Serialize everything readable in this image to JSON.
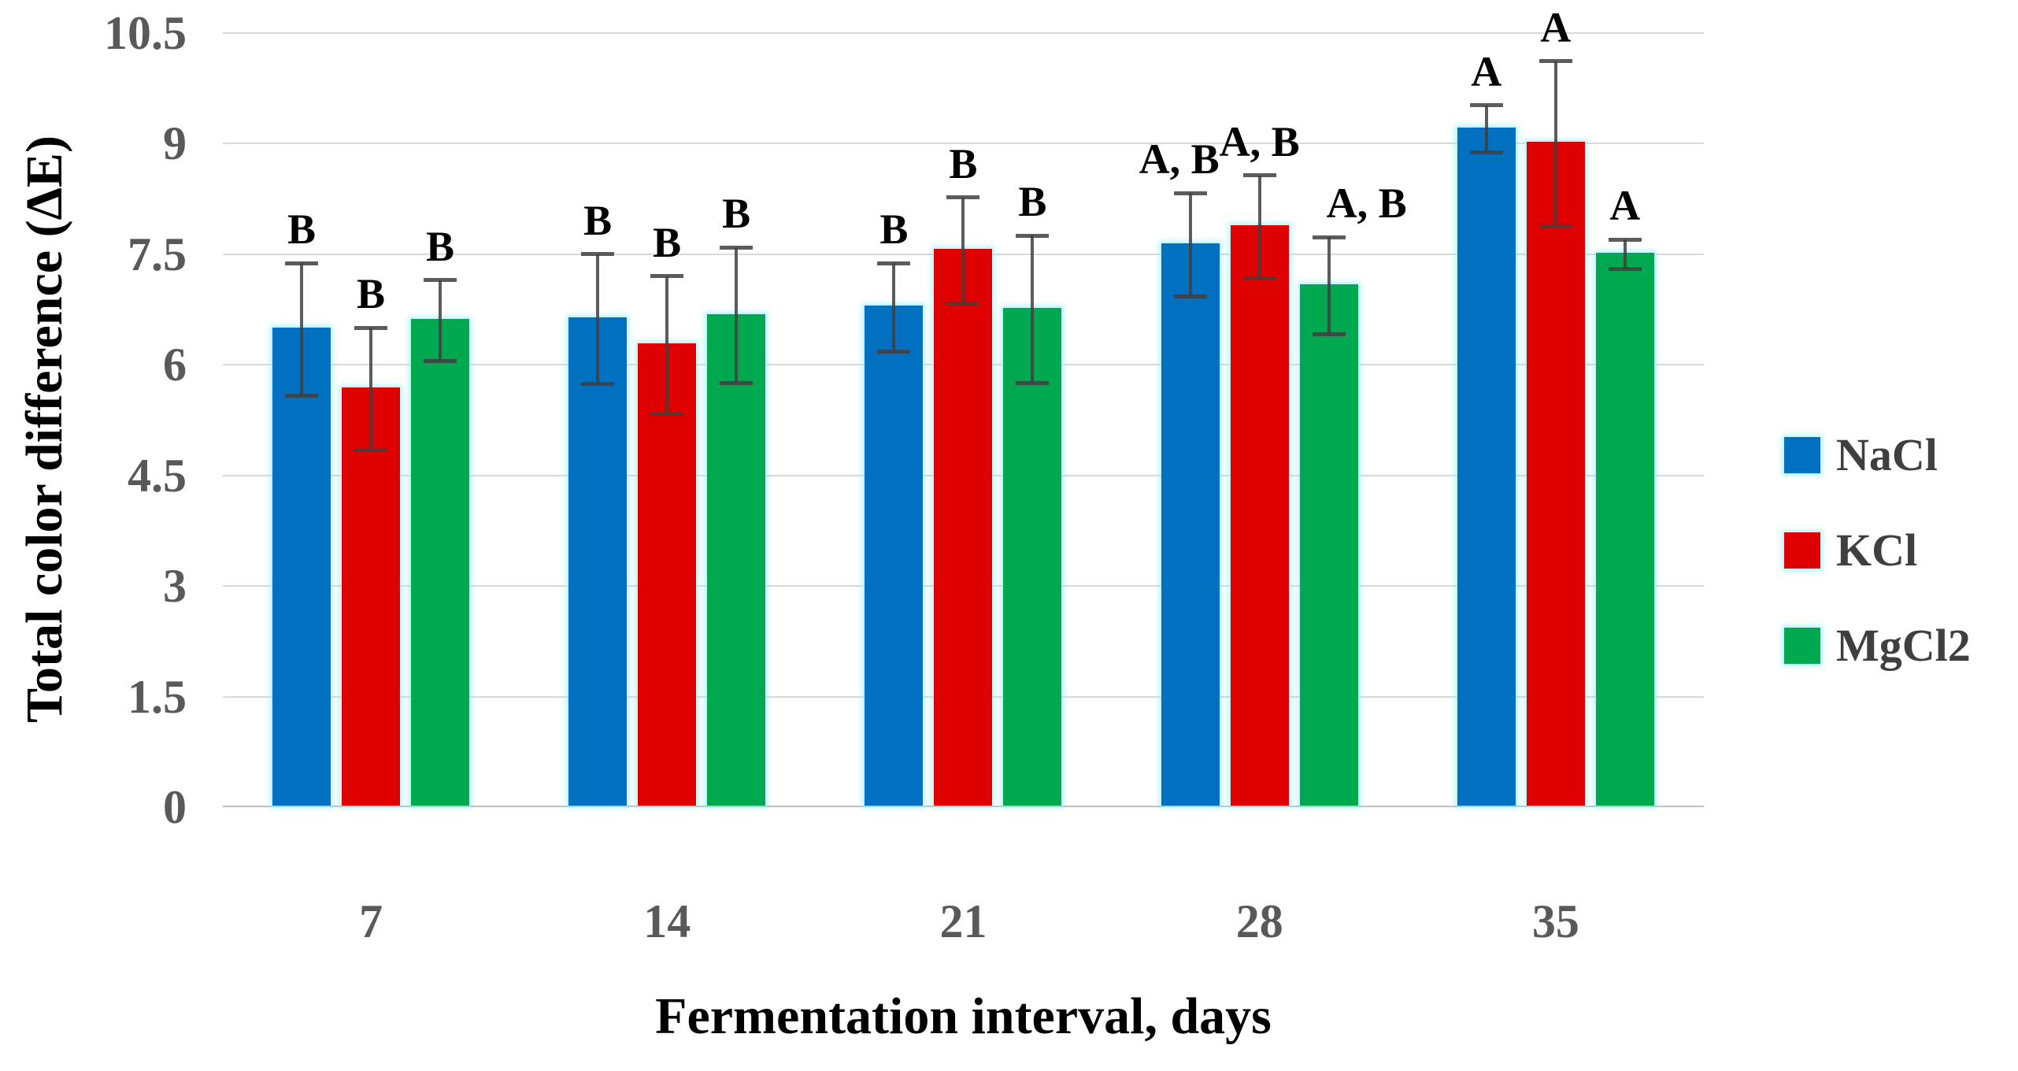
{
  "chart_data": {
    "type": "bar",
    "title": "",
    "xlabel": "Fermentation interval, days",
    "ylabel": "Total color difference (ΔE)",
    "categories": [
      "7",
      "14",
      "21",
      "28",
      "35"
    ],
    "series": [
      {
        "name": "NaCl",
        "color": "#0070C0",
        "values": [
          6.48,
          6.62,
          6.78,
          7.63,
          9.2
        ],
        "errors": [
          0.9,
          0.88,
          0.6,
          0.7,
          0.32
        ],
        "sig_letters": [
          "B",
          "B",
          "B",
          "A, B",
          "A"
        ]
      },
      {
        "name": "KCl",
        "color": "#DF0000",
        "values": [
          5.67,
          6.27,
          7.55,
          7.87,
          9.0
        ],
        "errors": [
          0.83,
          0.93,
          0.72,
          0.7,
          1.12
        ],
        "sig_letters": [
          "B",
          "B",
          "B",
          "A, B",
          "A"
        ]
      },
      {
        "name": "MgCl2",
        "color": "#00A94F",
        "values": [
          6.6,
          6.67,
          6.75,
          7.07,
          7.5
        ],
        "errors": [
          0.55,
          0.92,
          1.0,
          0.66,
          0.2
        ],
        "sig_letters": [
          "B",
          "B",
          "B",
          "A, B",
          "A"
        ]
      }
    ],
    "ylim": [
      0,
      10.5
    ],
    "ytick_step": 1.5,
    "yticks": [
      "0",
      "1.5",
      "3",
      "4.5",
      "6",
      "7.5",
      "9",
      "10.5"
    ],
    "grid": "horizontal-only",
    "legend_position": "right",
    "legend": [
      "NaCl",
      "KCl",
      "MgCl2"
    ]
  },
  "colors": {
    "gridline": "#D9D9D9",
    "axis_line": "#BFBFBF",
    "error_bar": "#3F3F3F",
    "tick_label": "#595959",
    "legend_label": "#3F3F3F",
    "background": "#FFFFFF"
  }
}
